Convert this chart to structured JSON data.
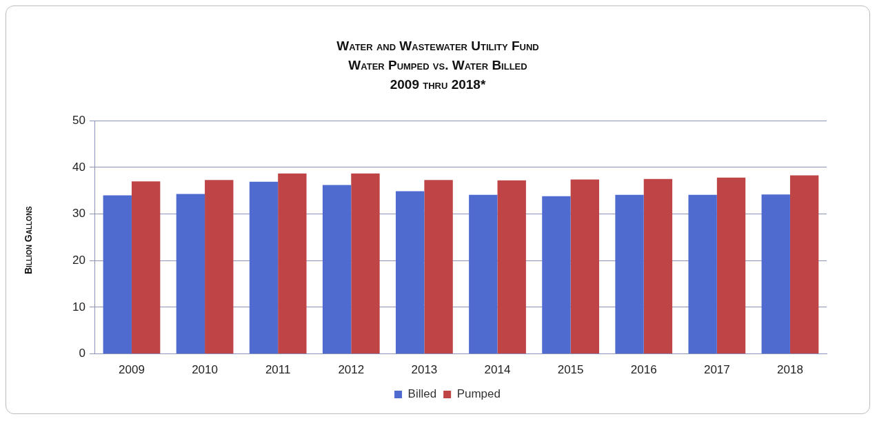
{
  "chart_data": {
    "type": "bar",
    "title": "Water and Wastewater Utility Fund",
    "subtitle": "Water Pumped vs. Water Billed\n2009 thru 2018*",
    "ylabel": "Billion Gallons",
    "categories": [
      "2009",
      "2010",
      "2011",
      "2012",
      "2013",
      "2014",
      "2015",
      "2016",
      "2017",
      "2018"
    ],
    "series": [
      {
        "name": "Billed",
        "color": "#4f6bd0",
        "values": [
          34.0,
          34.3,
          36.9,
          36.2,
          34.9,
          34.1,
          33.8,
          34.1,
          34.1,
          34.2
        ]
      },
      {
        "name": "Pumped",
        "color": "#bf4446",
        "values": [
          37.0,
          37.3,
          38.7,
          38.7,
          37.3,
          37.2,
          37.4,
          37.5,
          37.8,
          38.3
        ]
      }
    ],
    "ylim": [
      0,
      50
    ],
    "yticks": [
      0,
      10,
      20,
      30,
      40,
      50
    ],
    "grid": "y",
    "legend": "bottom"
  }
}
